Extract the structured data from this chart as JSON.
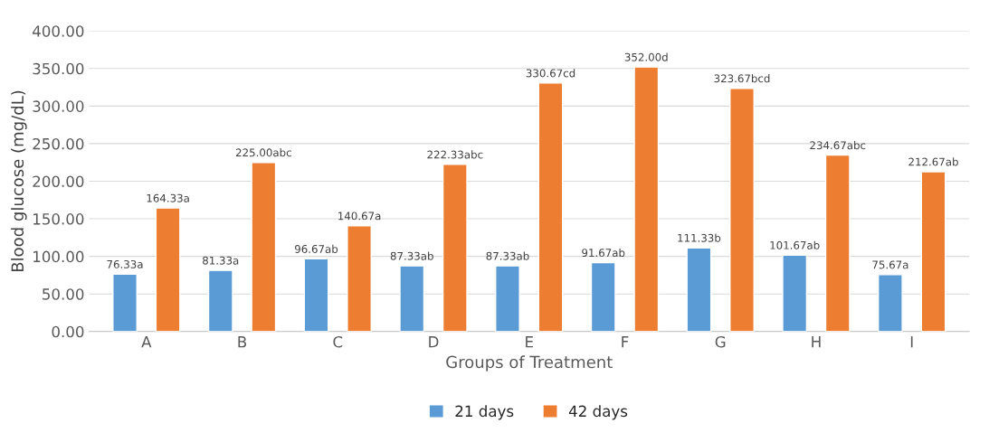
{
  "chart_data": {
    "type": "bar",
    "xlabel": "Groups of Treatment",
    "ylabel": "Blood glucose (mg/dL)",
    "categories": [
      "A",
      "B",
      "C",
      "D",
      "E",
      "F",
      "G",
      "H",
      "I"
    ],
    "series": [
      {
        "name": "21 days",
        "color": "#5b9bd5",
        "values": [
          76.33,
          81.33,
          96.67,
          87.33,
          87.33,
          91.67,
          111.33,
          101.67,
          75.67
        ],
        "value_labels": [
          "76.33a",
          "81.33a",
          "96.67ab",
          "87.33ab",
          "87.33ab",
          "91.67ab",
          "111.33b",
          "101.67ab",
          "75.67a"
        ]
      },
      {
        "name": "42 days",
        "color": "#ed7d31",
        "values": [
          164.33,
          225.0,
          140.67,
          222.33,
          330.67,
          352.0,
          323.67,
          234.67,
          212.67
        ],
        "value_labels": [
          "164.33a",
          "225.00abc",
          "140.67a",
          "222.33abc",
          "330.67cd",
          "352.00d",
          "323.67bcd",
          "234.67abc",
          "212.67ab"
        ]
      }
    ],
    "ylim": [
      0,
      400
    ],
    "yticks": [
      {
        "value": 0,
        "label": "0.00"
      },
      {
        "value": 50,
        "label": "50.00"
      },
      {
        "value": 100,
        "label": "100.00"
      },
      {
        "value": 150,
        "label": "150.00"
      },
      {
        "value": 200,
        "label": "200.00"
      },
      {
        "value": 250,
        "label": "250.00"
      },
      {
        "value": 300,
        "label": "300.00"
      },
      {
        "value": 350,
        "label": "350.00"
      },
      {
        "value": 400,
        "label": "400.00"
      }
    ],
    "grid": "y",
    "legend": "bottom"
  }
}
